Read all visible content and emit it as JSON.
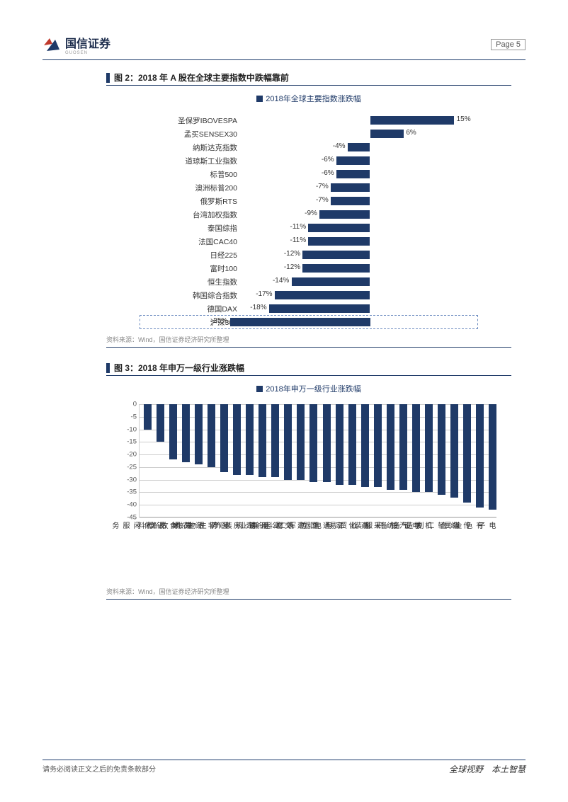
{
  "header": {
    "company_name": "国信证券",
    "page_label": "Page  5"
  },
  "logo": {
    "red": "#c0392b",
    "blue": "#1f3a68",
    "sub": "GUOSEN"
  },
  "chart1": {
    "title": "图 2：2018 年 A 股在全球主要指数中跌幅靠前",
    "legend": "2018年全球主要指数涨跌幅",
    "type": "horizontal_bar",
    "bar_color": "#1f3a68",
    "highlight_color": "#6a8abf",
    "zero_position_pct": 55,
    "scale_pct_per_unit": 2.4,
    "items": [
      {
        "label": "圣保罗IBOVESPA",
        "value": 15,
        "display": "15%"
      },
      {
        "label": "孟买SENSEX30",
        "value": 6,
        "display": "6%"
      },
      {
        "label": "纳斯达克指数",
        "value": -4,
        "display": "-4%"
      },
      {
        "label": "道琼斯工业指数",
        "value": -6,
        "display": "-6%"
      },
      {
        "label": "标普500",
        "value": -6,
        "display": "-6%"
      },
      {
        "label": "澳洲标普200",
        "value": -7,
        "display": "-7%"
      },
      {
        "label": "俄罗斯RTS",
        "value": -7,
        "display": "-7%"
      },
      {
        "label": "台湾加权指数",
        "value": -9,
        "display": "-9%"
      },
      {
        "label": "泰国综指",
        "value": -11,
        "display": "-11%"
      },
      {
        "label": "法国CAC40",
        "value": -11,
        "display": "-11%"
      },
      {
        "label": "日经225",
        "value": -12,
        "display": "-12%"
      },
      {
        "label": "富时100",
        "value": -12,
        "display": "-12%"
      },
      {
        "label": "恒生指数",
        "value": -14,
        "display": "-14%"
      },
      {
        "label": "韩国综合指数",
        "value": -17,
        "display": "-17%"
      },
      {
        "label": "德国DAX",
        "value": -18,
        "display": "-18%"
      },
      {
        "label": "沪深300",
        "value": -25,
        "display": "-25%",
        "highlight": true
      }
    ],
    "source": "资料来源：Wind，国信证券经济研究所整理"
  },
  "chart2": {
    "title": "图 3：2018 年申万一级行业涨跌幅",
    "legend": "2018年申万一级行业涨跌幅",
    "type": "vertical_bar",
    "bar_color": "#1f3a68",
    "grid_color": "#cccccc",
    "ylim": [
      -45,
      0
    ],
    "ytick_step": 5,
    "yticks": [
      0,
      -5,
      -10,
      -15,
      -20,
      -25,
      -30,
      -35,
      -40,
      -45
    ],
    "items": [
      {
        "label": "休闲服务",
        "value": -10
      },
      {
        "label": "银行",
        "value": -15
      },
      {
        "label": "食品饮料",
        "value": -22
      },
      {
        "label": "农林牧渔",
        "value": -23
      },
      {
        "label": "计算机",
        "value": -24
      },
      {
        "label": "非银金融",
        "value": -25
      },
      {
        "label": "医药生物",
        "value": -27
      },
      {
        "label": "房地产",
        "value": -28
      },
      {
        "label": "建筑装饰",
        "value": -28
      },
      {
        "label": "钢铁",
        "value": -29
      },
      {
        "label": "公用事业",
        "value": -29
      },
      {
        "label": "交通运输",
        "value": -30
      },
      {
        "label": "建筑材料",
        "value": -30
      },
      {
        "label": "国防军工",
        "value": -31
      },
      {
        "label": "通信",
        "value": -31
      },
      {
        "label": "家用电器",
        "value": -32
      },
      {
        "label": "化工",
        "value": -32
      },
      {
        "label": "商业贸易",
        "value": -33
      },
      {
        "label": "采掘",
        "value": -33
      },
      {
        "label": "纺织服装",
        "value": -34
      },
      {
        "label": "汽车",
        "value": -34
      },
      {
        "label": "电气设备",
        "value": -35
      },
      {
        "label": "机械设备",
        "value": -35
      },
      {
        "label": "轻工制造",
        "value": -36
      },
      {
        "label": "综合",
        "value": -37
      },
      {
        "label": "传媒",
        "value": -39
      },
      {
        "label": "有色金属",
        "value": -41
      },
      {
        "label": "电子",
        "value": -42
      }
    ],
    "source": "资料来源：Wind，国信证券经济研究所整理"
  },
  "footer": {
    "left": "请务必阅读正文之后的免责条款部分",
    "right": "全球视野　本土智慧"
  }
}
